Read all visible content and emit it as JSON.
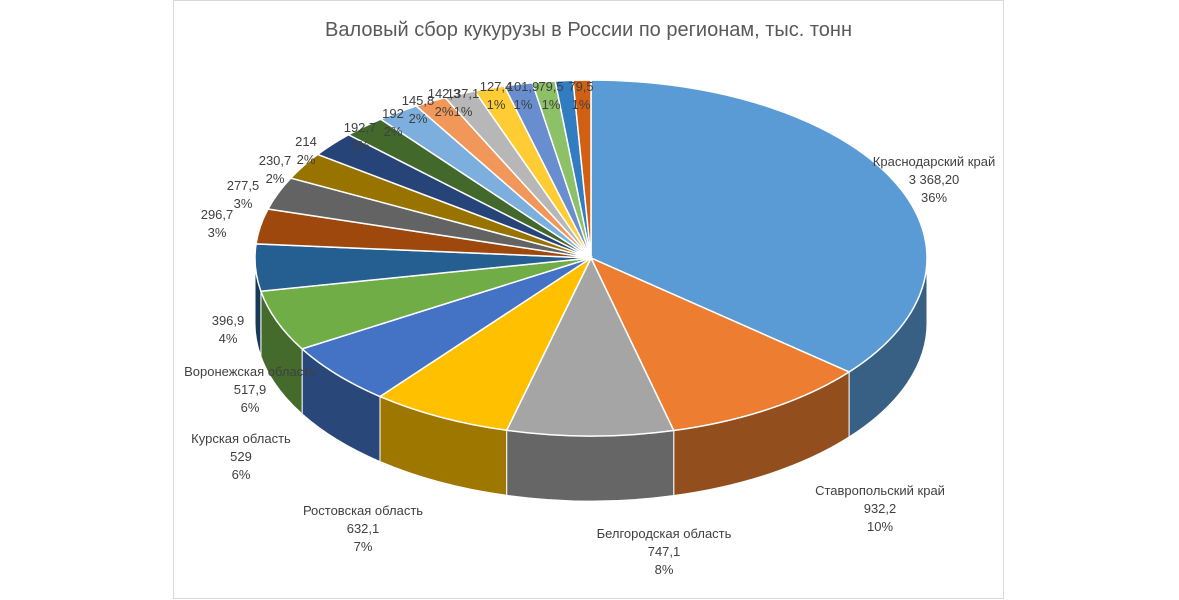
{
  "chart_data": {
    "type": "pie",
    "title": "Валовый сбор кукурузы в России по регионам, тыс. тонн",
    "slices": [
      {
        "name": "Краснодарский край",
        "value_text": "3 368,20",
        "value": 3368.2,
        "percent": "36%",
        "color": "#5b9bd5"
      },
      {
        "name": "Ставропольский край",
        "value_text": "932,2",
        "value": 932.2,
        "percent": "10%",
        "color": "#ed7d31"
      },
      {
        "name": "Белгородская область",
        "value_text": "747,1",
        "value": 747.1,
        "percent": "8%",
        "color": "#a5a5a5"
      },
      {
        "name": "Ростовская область",
        "value_text": "632,1",
        "value": 632.1,
        "percent": "7%",
        "color": "#ffc000"
      },
      {
        "name": "Курская область",
        "value_text": "529",
        "value": 529,
        "percent": "6%",
        "color": "#4472c4"
      },
      {
        "name": "Воронежская область",
        "value_text": "517,9",
        "value": 517.9,
        "percent": "6%",
        "color": "#70ad47"
      },
      {
        "name": "",
        "value_text": "396,9",
        "value": 396.9,
        "percent": "4%",
        "color": "#255e91"
      },
      {
        "name": "",
        "value_text": "296,7",
        "value": 296.7,
        "percent": "3%",
        "color": "#9e480e"
      },
      {
        "name": "",
        "value_text": "277,5",
        "value": 277.5,
        "percent": "3%",
        "color": "#636363"
      },
      {
        "name": "",
        "value_text": "230,7",
        "value": 230.7,
        "percent": "2%",
        "color": "#997300"
      },
      {
        "name": "",
        "value_text": "214",
        "value": 214,
        "percent": "2%",
        "color": "#264478"
      },
      {
        "name": "",
        "value_text": "192,7",
        "value": 192.7,
        "percent": "2%",
        "color": "#43682b"
      },
      {
        "name": "",
        "value_text": "192",
        "value": 192,
        "percent": "2%",
        "color": "#7cafdd"
      },
      {
        "name": "",
        "value_text": "145,8",
        "value": 145.8,
        "percent": "2%",
        "color": "#f1975a"
      },
      {
        "name": "",
        "value_text": "142,3",
        "value": 142.3,
        "percent": "2%",
        "color": "#b7b7b7"
      },
      {
        "name": "",
        "value_text": "137,1",
        "value": 137.1,
        "percent": "1%",
        "color": "#ffcd33"
      },
      {
        "name": "",
        "value_text": "127,4",
        "value": 127.4,
        "percent": "1%",
        "color": "#698ed0"
      },
      {
        "name": "",
        "value_text": "101,9",
        "value": 101.9,
        "percent": "1%",
        "color": "#8cc168"
      },
      {
        "name": "",
        "value_text": "79,5",
        "value": 79.5,
        "percent": "1%",
        "color": "#327dc2"
      },
      {
        "name": "",
        "value_text": "79,5",
        "value": 79.5,
        "percent": "1%",
        "color": "#d26012"
      }
    ]
  }
}
